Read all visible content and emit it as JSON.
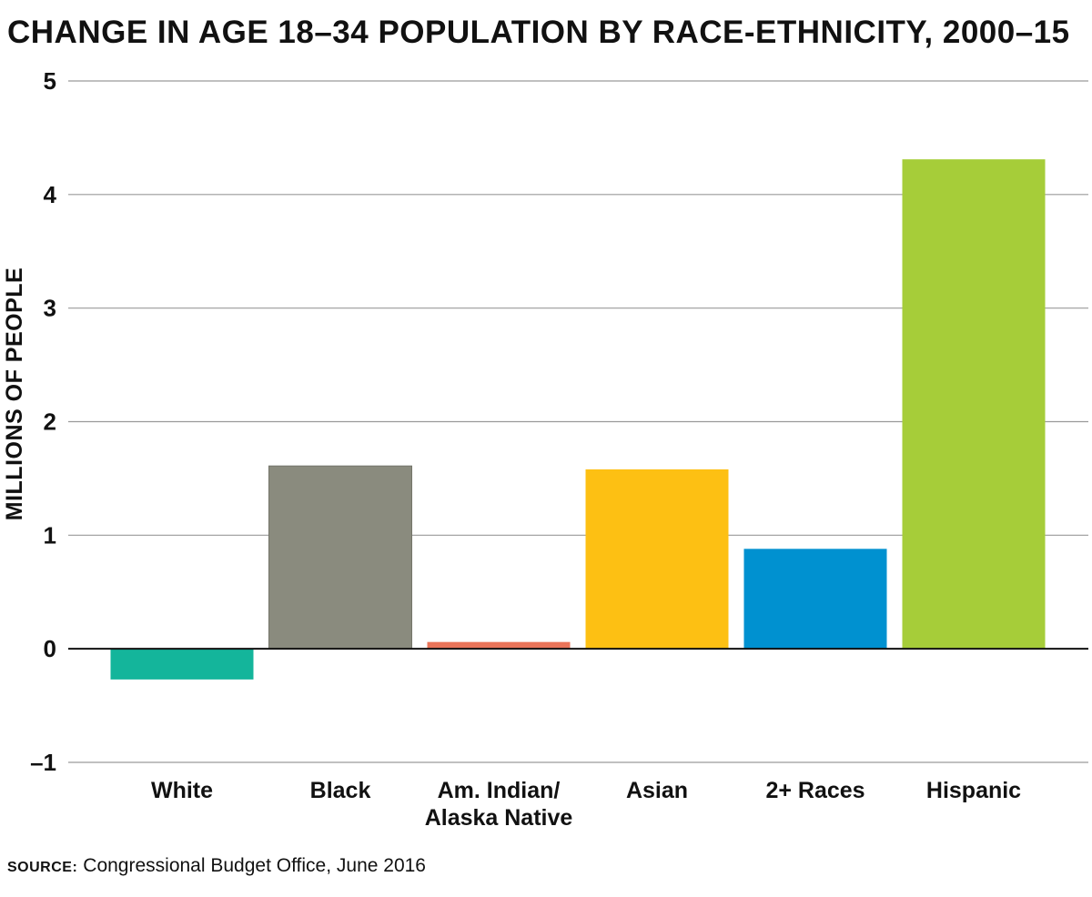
{
  "chart_data": {
    "type": "bar",
    "title": "CHANGE IN AGE 18–34 POPULATION BY RACE-ETHNICITY, 2000–15",
    "ylabel": "MILLIONS OF PEOPLE",
    "xlabel": "",
    "ylim": [
      -1,
      5
    ],
    "yticks": [
      {
        "value": -1,
        "label": "–1"
      },
      {
        "value": 0,
        "label": "0"
      },
      {
        "value": 1,
        "label": "1"
      },
      {
        "value": 2,
        "label": "2"
      },
      {
        "value": 3,
        "label": "3"
      },
      {
        "value": 4,
        "label": "4"
      },
      {
        "value": 5,
        "label": "5"
      }
    ],
    "grid": true,
    "categories": [
      {
        "lines": [
          "White"
        ]
      },
      {
        "lines": [
          "Black"
        ]
      },
      {
        "lines": [
          "Am. Indian/",
          "Alaska Native"
        ]
      },
      {
        "lines": [
          "Asian"
        ]
      },
      {
        "lines": [
          "2+ Races"
        ]
      },
      {
        "lines": [
          "Hispanic"
        ]
      }
    ],
    "values": [
      -0.27,
      1.61,
      0.06,
      1.58,
      0.88,
      4.31
    ],
    "colors": [
      "#14b59b",
      "#8a8b7e",
      "#ea7459",
      "#fdc013",
      "#0091d0",
      "#a6cd39"
    ]
  },
  "source": {
    "label": "SOURCE:",
    "text": "Congressional Budget Office, June 2016"
  }
}
